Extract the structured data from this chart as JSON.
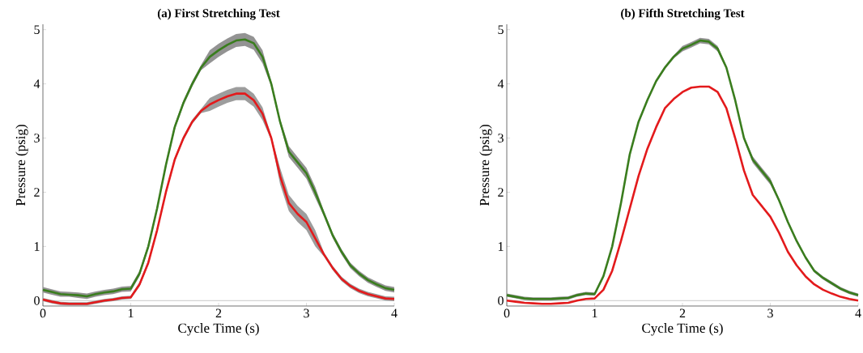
{
  "chart_data": [
    {
      "type": "line",
      "title": "(a) First Stretching Test",
      "xlabel": "Cycle Time (s)",
      "ylabel": "Pressure (psig)",
      "xlim": [
        0,
        4
      ],
      "ylim": [
        -0.1,
        5.1
      ],
      "xticks": [
        0,
        1,
        2,
        3,
        4
      ],
      "yticks": [
        0,
        1,
        2,
        3,
        4,
        5
      ],
      "ref_lines": [
        {
          "axis": "y",
          "value": 0,
          "color": "#c8c8c8"
        }
      ],
      "x": [
        0,
        0.1,
        0.2,
        0.3,
        0.4,
        0.5,
        0.6,
        0.7,
        0.8,
        0.9,
        1.0,
        1.1,
        1.2,
        1.3,
        1.4,
        1.5,
        1.6,
        1.7,
        1.8,
        1.9,
        2.0,
        2.1,
        2.2,
        2.3,
        2.4,
        2.5,
        2.6,
        2.7,
        2.8,
        2.9,
        3.0,
        3.1,
        3.2,
        3.3,
        3.4,
        3.5,
        3.6,
        3.7,
        3.8,
        3.9,
        4.0
      ],
      "series": [
        {
          "color": "#3a7d1e",
          "values": [
            0.2,
            0.16,
            0.12,
            0.11,
            0.1,
            0.08,
            0.12,
            0.15,
            0.17,
            0.21,
            0.22,
            0.5,
            1.0,
            1.7,
            2.5,
            3.2,
            3.65,
            4.0,
            4.3,
            4.5,
            4.62,
            4.72,
            4.8,
            4.82,
            4.75,
            4.5,
            4.0,
            3.3,
            2.75,
            2.55,
            2.35,
            2.0,
            1.6,
            1.2,
            0.9,
            0.65,
            0.5,
            0.38,
            0.3,
            0.23,
            0.2
          ],
          "lower": [
            0.15,
            0.11,
            0.07,
            0.07,
            0.05,
            0.03,
            0.07,
            0.1,
            0.12,
            0.16,
            0.17,
            0.45,
            0.95,
            1.65,
            2.45,
            3.15,
            3.6,
            3.95,
            4.25,
            4.38,
            4.5,
            4.6,
            4.68,
            4.7,
            4.63,
            4.38,
            3.95,
            3.25,
            2.65,
            2.45,
            2.25,
            1.9,
            1.55,
            1.15,
            0.85,
            0.6,
            0.45,
            0.33,
            0.25,
            0.18,
            0.15
          ],
          "upper": [
            0.25,
            0.21,
            0.17,
            0.16,
            0.15,
            0.13,
            0.17,
            0.2,
            0.22,
            0.26,
            0.27,
            0.55,
            1.05,
            1.75,
            2.55,
            3.25,
            3.7,
            4.05,
            4.35,
            4.62,
            4.74,
            4.84,
            4.92,
            4.94,
            4.87,
            4.62,
            4.05,
            3.35,
            2.85,
            2.65,
            2.45,
            2.1,
            1.65,
            1.25,
            0.95,
            0.7,
            0.55,
            0.43,
            0.35,
            0.28,
            0.25
          ]
        },
        {
          "color": "#e31a1c",
          "values": [
            0.02,
            -0.02,
            -0.05,
            -0.06,
            -0.06,
            -0.06,
            -0.03,
            0.0,
            0.02,
            0.05,
            0.06,
            0.3,
            0.7,
            1.3,
            2.0,
            2.6,
            3.0,
            3.3,
            3.5,
            3.62,
            3.7,
            3.77,
            3.82,
            3.82,
            3.7,
            3.45,
            3.0,
            2.3,
            1.8,
            1.6,
            1.45,
            1.15,
            0.85,
            0.6,
            0.4,
            0.27,
            0.18,
            0.12,
            0.08,
            0.04,
            0.03
          ],
          "lower": [
            -0.01,
            -0.05,
            -0.08,
            -0.09,
            -0.09,
            -0.09,
            -0.06,
            -0.03,
            -0.01,
            0.02,
            0.03,
            0.26,
            0.66,
            1.26,
            1.96,
            2.56,
            2.96,
            3.26,
            3.46,
            3.5,
            3.58,
            3.65,
            3.7,
            3.7,
            3.58,
            3.33,
            2.96,
            2.15,
            1.65,
            1.45,
            1.3,
            1.0,
            0.81,
            0.56,
            0.36,
            0.23,
            0.14,
            0.08,
            0.04,
            0.0,
            -0.01
          ],
          "upper": [
            0.05,
            0.01,
            -0.02,
            -0.03,
            -0.03,
            -0.03,
            0.0,
            0.03,
            0.05,
            0.08,
            0.09,
            0.34,
            0.74,
            1.34,
            2.04,
            2.64,
            3.04,
            3.34,
            3.54,
            3.74,
            3.82,
            3.89,
            3.94,
            3.94,
            3.82,
            3.57,
            3.04,
            2.45,
            1.95,
            1.75,
            1.6,
            1.3,
            0.89,
            0.64,
            0.44,
            0.31,
            0.22,
            0.16,
            0.12,
            0.08,
            0.07
          ]
        }
      ]
    },
    {
      "type": "line",
      "title": "(b) Fifth Stretching Test",
      "xlabel": "Cycle Time (s)",
      "ylabel": "Pressure (psig)",
      "xlim": [
        0,
        4
      ],
      "ylim": [
        -0.1,
        5.1
      ],
      "xticks": [
        0,
        1,
        2,
        3,
        4
      ],
      "yticks": [
        0,
        1,
        2,
        3,
        4,
        5
      ],
      "ref_lines": [
        {
          "axis": "y",
          "value": 0,
          "color": "#c8c8c8"
        }
      ],
      "x": [
        0,
        0.1,
        0.2,
        0.3,
        0.4,
        0.5,
        0.6,
        0.7,
        0.8,
        0.9,
        1.0,
        1.1,
        1.2,
        1.3,
        1.4,
        1.5,
        1.6,
        1.7,
        1.8,
        1.9,
        2.0,
        2.1,
        2.2,
        2.3,
        2.4,
        2.5,
        2.6,
        2.7,
        2.8,
        2.9,
        3.0,
        3.1,
        3.2,
        3.3,
        3.4,
        3.5,
        3.6,
        3.7,
        3.8,
        3.9,
        4.0
      ],
      "series": [
        {
          "color": "#3a7d1e",
          "values": [
            0.1,
            0.07,
            0.04,
            0.03,
            0.03,
            0.03,
            0.04,
            0.05,
            0.1,
            0.13,
            0.12,
            0.45,
            1.0,
            1.8,
            2.7,
            3.3,
            3.7,
            4.05,
            4.3,
            4.5,
            4.65,
            4.72,
            4.8,
            4.78,
            4.65,
            4.3,
            3.7,
            3.0,
            2.6,
            2.4,
            2.2,
            1.85,
            1.45,
            1.1,
            0.8,
            0.55,
            0.42,
            0.32,
            0.22,
            0.15,
            0.1
          ],
          "lower": [
            0.07,
            0.04,
            0.01,
            0.0,
            0.0,
            0.0,
            0.01,
            0.02,
            0.07,
            0.1,
            0.09,
            0.42,
            0.97,
            1.77,
            2.67,
            3.27,
            3.67,
            4.02,
            4.27,
            4.47,
            4.6,
            4.67,
            4.75,
            4.73,
            4.6,
            4.27,
            3.67,
            2.97,
            2.54,
            2.34,
            2.14,
            1.82,
            1.42,
            1.07,
            0.77,
            0.52,
            0.39,
            0.29,
            0.19,
            0.12,
            0.07
          ],
          "upper": [
            0.13,
            0.1,
            0.07,
            0.06,
            0.06,
            0.06,
            0.07,
            0.08,
            0.13,
            0.16,
            0.15,
            0.48,
            1.03,
            1.83,
            2.73,
            3.33,
            3.73,
            4.08,
            4.33,
            4.53,
            4.7,
            4.77,
            4.85,
            4.83,
            4.7,
            4.33,
            3.73,
            3.03,
            2.66,
            2.46,
            2.26,
            1.88,
            1.48,
            1.13,
            0.83,
            0.58,
            0.45,
            0.35,
            0.25,
            0.18,
            0.13
          ]
        },
        {
          "color": "#e31a1c",
          "values": [
            0.0,
            -0.02,
            -0.04,
            -0.05,
            -0.06,
            -0.06,
            -0.05,
            -0.04,
            0.0,
            0.03,
            0.04,
            0.2,
            0.55,
            1.1,
            1.7,
            2.3,
            2.8,
            3.2,
            3.55,
            3.72,
            3.85,
            3.93,
            3.95,
            3.95,
            3.85,
            3.55,
            3.0,
            2.4,
            1.95,
            1.75,
            1.55,
            1.25,
            0.9,
            0.65,
            0.45,
            0.3,
            0.2,
            0.13,
            0.07,
            0.03,
            0.0
          ]
        }
      ]
    }
  ]
}
